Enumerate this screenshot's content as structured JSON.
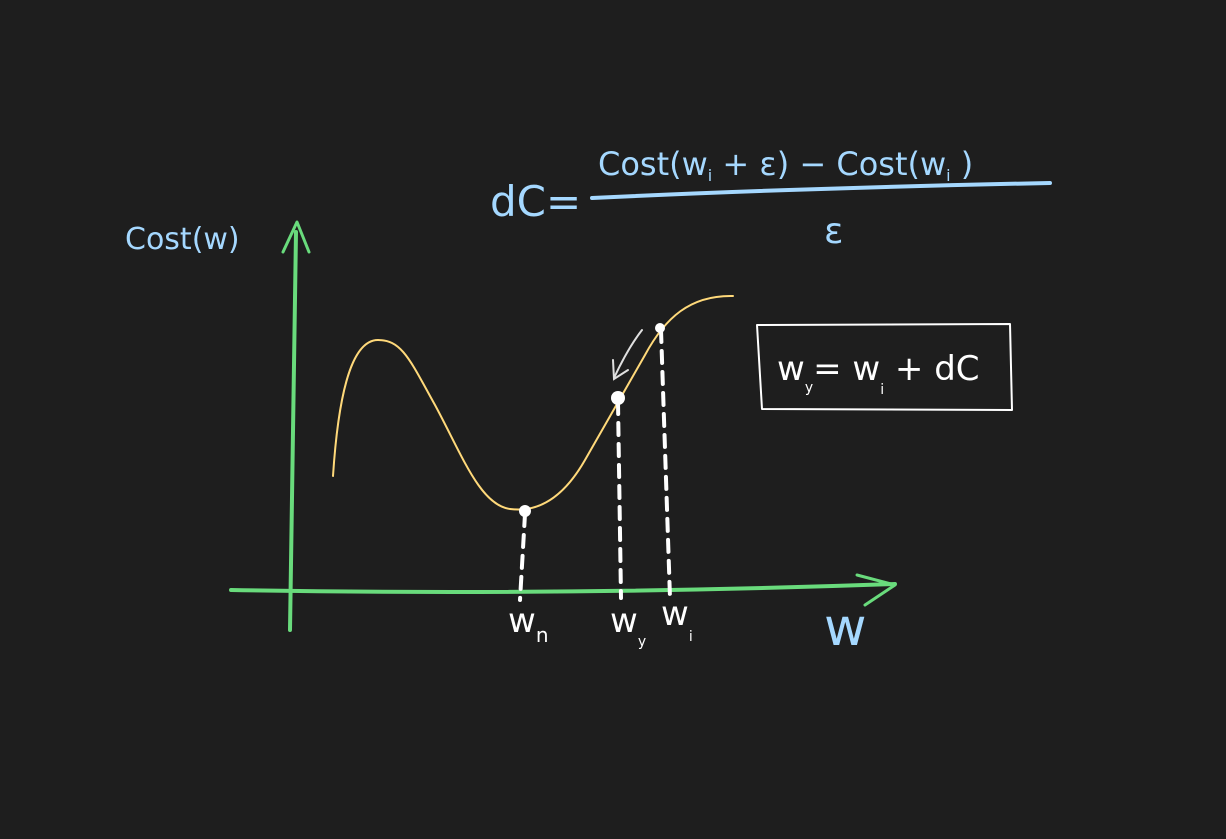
{
  "formula": {
    "lhs": "dC=",
    "numerator": "Cost(w",
    "num_sub1": "i",
    "num_mid": " + ε) − Cost(w",
    "num_sub2": "i",
    "num_end": " )",
    "denominator": "ε"
  },
  "y_axis_label": "Cost(w)",
  "x_axis_label": "w",
  "update_rule": {
    "lhs": "w",
    "lhs_sub": "y",
    "eq": "= w",
    "rhs_sub": "i",
    "rest": " + dC"
  },
  "points": [
    {
      "label": "w",
      "sub": "n"
    },
    {
      "label": "w",
      "sub": "y"
    },
    {
      "label": "w",
      "sub": "i"
    }
  ],
  "colors": {
    "background": "#1e1e1e",
    "axis": "#69db7c",
    "curve": "#ffd97a",
    "formula": "#a5d8ff",
    "marks": "#ffffff"
  }
}
